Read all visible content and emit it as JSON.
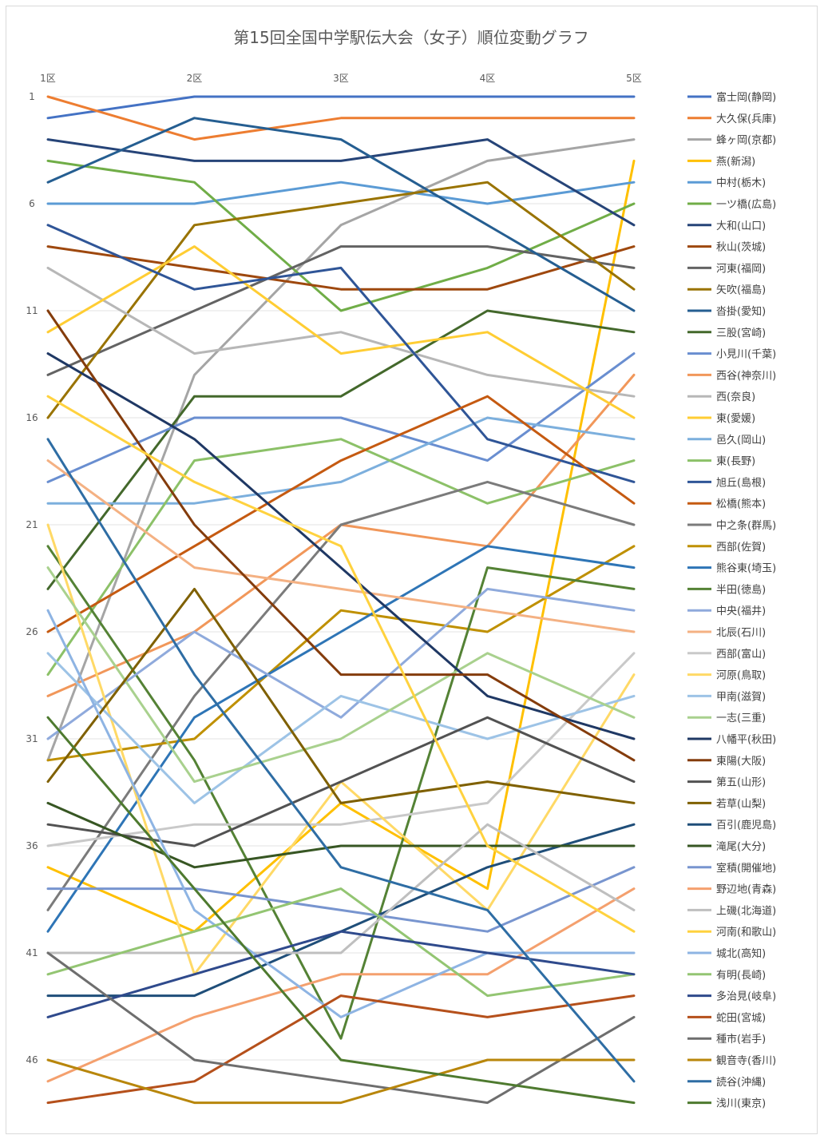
{
  "chart_data": {
    "type": "line",
    "title": "第15回全国中学駅伝大会（女子）順位変動グラフ",
    "categories": [
      "1区",
      "2区",
      "3区",
      "4区",
      "5区"
    ],
    "yticks": [
      1,
      6,
      11,
      16,
      21,
      26,
      31,
      36,
      41,
      46
    ],
    "ylim": [
      1,
      47
    ],
    "y_reversed": true,
    "grid": true,
    "legend_position": "right",
    "series": [
      {
        "name": "富士岡(静岡)",
        "color": "#4472C4",
        "values": [
          2,
          1,
          1,
          1,
          1
        ]
      },
      {
        "name": "大久保(兵庫)",
        "color": "#ED7D31",
        "values": [
          1,
          3,
          2,
          2,
          2
        ]
      },
      {
        "name": "蜂ヶ岡(京都)",
        "color": "#A5A5A5",
        "values": [
          32,
          14,
          7,
          4,
          3
        ]
      },
      {
        "name": "燕(新潟)",
        "color": "#FFC000",
        "values": [
          37,
          40,
          34,
          38,
          4
        ]
      },
      {
        "name": "中村(栃木)",
        "color": "#5B9BD5",
        "values": [
          6,
          6,
          5,
          6,
          5
        ]
      },
      {
        "name": "一ツ橋(広島)",
        "color": "#70AD47",
        "values": [
          4,
          5,
          11,
          9,
          6
        ]
      },
      {
        "name": "大和(山口)",
        "color": "#264478",
        "values": [
          3,
          4,
          4,
          3,
          7
        ]
      },
      {
        "name": "秋山(茨城)",
        "color": "#9E480E",
        "values": [
          8,
          9,
          10,
          10,
          8
        ]
      },
      {
        "name": "河東(福岡)",
        "color": "#636363",
        "values": [
          14,
          11,
          8,
          8,
          9
        ]
      },
      {
        "name": "矢吹(福島)",
        "color": "#997300",
        "values": [
          16,
          7,
          6,
          5,
          10
        ]
      },
      {
        "name": "沓掛(愛知)",
        "color": "#255E91",
        "values": [
          5,
          2,
          3,
          7,
          11
        ]
      },
      {
        "name": "三股(宮崎)",
        "color": "#43682B",
        "values": [
          24,
          15,
          15,
          11,
          12
        ]
      },
      {
        "name": "小見川(千葉)",
        "color": "#698ED0",
        "values": [
          19,
          16,
          16,
          18,
          13
        ]
      },
      {
        "name": "西谷(神奈川)",
        "color": "#F1975A",
        "values": [
          29,
          26,
          21,
          22,
          14
        ]
      },
      {
        "name": "西(奈良)",
        "color": "#B7B7B7",
        "values": [
          9,
          13,
          12,
          14,
          15
        ]
      },
      {
        "name": "東(愛媛)",
        "color": "#FFCD33",
        "values": [
          12,
          8,
          13,
          12,
          16
        ]
      },
      {
        "name": "邑久(岡山)",
        "color": "#7CAFDD",
        "values": [
          20,
          20,
          19,
          16,
          17
        ]
      },
      {
        "name": "東(長野)",
        "color": "#8CC168",
        "values": [
          28,
          18,
          17,
          20,
          18
        ]
      },
      {
        "name": "旭丘(島根)",
        "color": "#2F5597",
        "values": [
          7,
          10,
          9,
          17,
          19
        ]
      },
      {
        "name": "松橋(熊本)",
        "color": "#C55A11",
        "values": [
          26,
          22,
          18,
          15,
          20
        ]
      },
      {
        "name": "中之条(群馬)",
        "color": "#7B7B7B",
        "values": [
          39,
          29,
          21,
          19,
          21
        ]
      },
      {
        "name": "西部(佐賀)",
        "color": "#BF9000",
        "values": [
          32,
          31,
          25,
          26,
          22
        ]
      },
      {
        "name": "熊谷東(埼玉)",
        "color": "#2E75B6",
        "values": [
          40,
          30,
          26,
          22,
          23
        ]
      },
      {
        "name": "半田(徳島)",
        "color": "#548235",
        "values": [
          22,
          32,
          45,
          23,
          24
        ]
      },
      {
        "name": "中央(福井)",
        "color": "#8FAADC",
        "values": [
          31,
          26,
          30,
          24,
          25
        ]
      },
      {
        "name": "北辰(石川)",
        "color": "#F4B183",
        "values": [
          18,
          23,
          24,
          25,
          26
        ]
      },
      {
        "name": "西部(富山)",
        "color": "#C9C9C9",
        "values": [
          36,
          35,
          35,
          34,
          27
        ]
      },
      {
        "name": "河原(鳥取)",
        "color": "#FFD966",
        "values": [
          21,
          42,
          33,
          39,
          28
        ]
      },
      {
        "name": "甲南(滋賀)",
        "color": "#9DC3E6",
        "values": [
          27,
          34,
          29,
          31,
          29
        ]
      },
      {
        "name": "一志(三重)",
        "color": "#A9D18E",
        "values": [
          23,
          33,
          31,
          27,
          30
        ]
      },
      {
        "name": "八幡平(秋田)",
        "color": "#1F3864",
        "values": [
          13,
          17,
          23,
          29,
          31
        ]
      },
      {
        "name": "東陽(大阪)",
        "color": "#843C0C",
        "values": [
          11,
          21,
          28,
          28,
          32
        ]
      },
      {
        "name": "第五(山形)",
        "color": "#525252",
        "values": [
          35,
          36,
          33,
          30,
          33
        ]
      },
      {
        "name": "若草(山梨)",
        "color": "#7F6000",
        "values": [
          33,
          24,
          34,
          33,
          34
        ]
      },
      {
        "name": "百引(鹿児島)",
        "color": "#1F4E79",
        "values": [
          43,
          43,
          40,
          37,
          35
        ]
      },
      {
        "name": "滝尾(大分)",
        "color": "#375623",
        "values": [
          34,
          37,
          36,
          36,
          36
        ]
      },
      {
        "name": "室積(開催地)",
        "color": "#7895CF",
        "values": [
          38,
          38,
          39,
          40,
          37
        ]
      },
      {
        "name": "野辺地(青森)",
        "color": "#F4A06E",
        "values": [
          47,
          44,
          42,
          42,
          38
        ]
      },
      {
        "name": "上磯(北海道)",
        "color": "#BFBFBF",
        "values": [
          41,
          41,
          41,
          35,
          39
        ]
      },
      {
        "name": "河南(和歌山)",
        "color": "#FFD23F",
        "values": [
          15,
          19,
          22,
          36,
          40
        ]
      },
      {
        "name": "城北(高知)",
        "color": "#8EB4E3",
        "values": [
          25,
          39,
          44,
          41,
          41
        ]
      },
      {
        "name": "有明(長崎)",
        "color": "#93C572",
        "values": [
          42,
          40,
          38,
          43,
          42
        ]
      },
      {
        "name": "多治見(岐阜)",
        "color": "#2F4A8C",
        "values": [
          44,
          42,
          40,
          41,
          42
        ]
      },
      {
        "name": "蛇田(宮城)",
        "color": "#B5501B",
        "values": [
          48,
          47,
          43,
          44,
          43
        ]
      },
      {
        "name": "種市(岩手)",
        "color": "#6E6E6E",
        "values": [
          41,
          46,
          47,
          48,
          44
        ]
      },
      {
        "name": "観音寺(香川)",
        "color": "#B8860B",
        "values": [
          46,
          48,
          48,
          46,
          46
        ]
      },
      {
        "name": "読谷(沖縄)",
        "color": "#2E6DA4",
        "values": [
          17,
          28,
          37,
          39,
          47
        ]
      },
      {
        "name": "浅川(東京)",
        "color": "#4E7A2F",
        "values": [
          30,
          38,
          46,
          47,
          48
        ]
      }
    ]
  }
}
